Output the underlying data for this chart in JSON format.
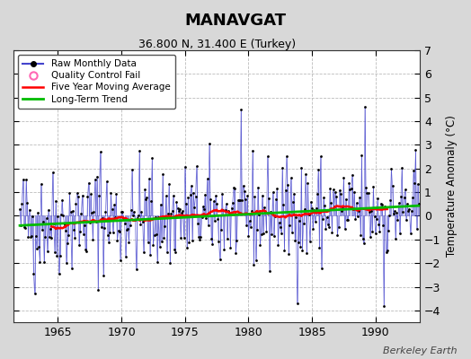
{
  "title": "MANAVGAT",
  "subtitle": "36.800 N, 31.400 E (Turkey)",
  "ylabel": "Temperature Anomaly (°C)",
  "watermark": "Berkeley Earth",
  "ylim": [
    -4.5,
    7
  ],
  "yticks": [
    -4,
    -3,
    -2,
    -1,
    0,
    1,
    2,
    3,
    4,
    5,
    6,
    7
  ],
  "xlim": [
    1961.5,
    1993.5
  ],
  "xticks": [
    1965,
    1970,
    1975,
    1980,
    1985,
    1990
  ],
  "start_year": 1962,
  "end_year": 1993,
  "background_color": "#d8d8d8",
  "plot_bg_color": "#ffffff",
  "line_color": "#4444cc",
  "dot_color": "#000000",
  "ma_color": "#ff0000",
  "trend_color": "#00bb00",
  "legend_items": [
    "Raw Monthly Data",
    "Quality Control Fail",
    "Five Year Moving Average",
    "Long-Term Trend"
  ],
  "seed": 42
}
